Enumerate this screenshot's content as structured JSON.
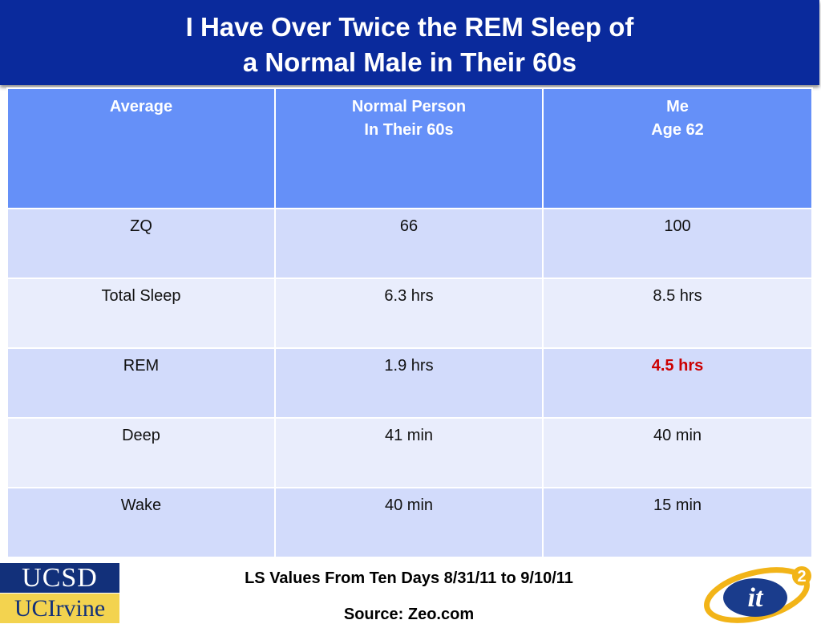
{
  "slide": {
    "title_line1": "I Have Over Twice the REM Sleep of",
    "title_line2": "a Normal Male in Their 60s"
  },
  "table": {
    "headers": [
      {
        "line1": "Average",
        "line2": ""
      },
      {
        "line1": "Normal Person",
        "line2": "In Their 60s"
      },
      {
        "line1": "Me",
        "line2": "Age 62"
      }
    ],
    "rows": [
      [
        "ZQ",
        "66",
        "100"
      ],
      [
        "Total Sleep",
        "6.3 hrs",
        "8.5 hrs"
      ],
      [
        "REM",
        "1.9 hrs",
        "4.5 hrs"
      ],
      [
        "Deep",
        "41 min",
        "40 min"
      ],
      [
        "Wake",
        "40 min",
        "15 min"
      ]
    ],
    "highlight_color": "#cc0000",
    "header_color": "#6590f8"
  },
  "footer": {
    "line1": "LS Values From Ten Days 8/31/11 to 9/10/11",
    "line2": "Source: Zeo.com"
  },
  "logos": {
    "ucsd": "UCSD",
    "ucirvine": "UCIrvine",
    "it2_text": "it",
    "it2_sup": "2"
  },
  "colors": {
    "title_bar": "#0a2a9c",
    "ucsd_bg": "#12307a",
    "uci_bg": "#f3d34f"
  }
}
